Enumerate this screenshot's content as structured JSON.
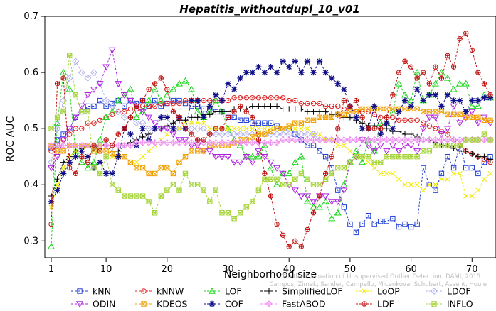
{
  "chart_data": {
    "type": "line",
    "title": "Hepatitis_withoutdupl_10_v01",
    "xlabel": "Neighborhood size",
    "ylabel": "ROC AUC",
    "xlim": [
      1,
      73
    ],
    "ylim": [
      0.27,
      0.7
    ],
    "x_ticks": [
      1,
      10,
      20,
      30,
      40,
      50,
      60,
      70
    ],
    "y_ticks": [
      0.3,
      0.4,
      0.5,
      0.6,
      0.7
    ],
    "grid": false,
    "legend_position": "bottom",
    "credit": "Campos, Zimek, Sander, Campello, Micenkova, Schubert, Assent, Houle: On the Evaluation of Unsupervised Outlier Detection. DAMI, 2015.",
    "x": [
      1,
      2,
      3,
      4,
      5,
      6,
      7,
      8,
      9,
      10,
      11,
      12,
      13,
      14,
      15,
      16,
      17,
      18,
      19,
      20,
      21,
      22,
      23,
      24,
      25,
      26,
      27,
      28,
      29,
      30,
      31,
      32,
      33,
      34,
      35,
      36,
      37,
      38,
      39,
      40,
      41,
      42,
      43,
      44,
      45,
      46,
      47,
      48,
      49,
      50,
      51,
      52,
      53,
      54,
      55,
      56,
      57,
      58,
      59,
      60,
      61,
      62,
      63,
      64,
      65,
      66,
      67,
      68,
      69,
      70,
      71,
      72,
      73
    ],
    "series": [
      {
        "name": "kNN",
        "color": "#1f3fd6",
        "marker": "square",
        "values": [
          0.465,
          0.48,
          0.49,
          0.5,
          0.52,
          0.53,
          0.54,
          0.54,
          0.55,
          0.54,
          0.545,
          0.55,
          0.54,
          0.55,
          0.545,
          0.55,
          0.54,
          0.55,
          0.54,
          0.545,
          0.55,
          0.55,
          0.545,
          0.54,
          0.54,
          0.535,
          0.535,
          0.53,
          0.53,
          0.52,
          0.52,
          0.515,
          0.515,
          0.51,
          0.51,
          0.51,
          0.51,
          0.505,
          0.5,
          0.5,
          0.49,
          0.48,
          0.47,
          0.47,
          0.46,
          0.45,
          0.43,
          0.39,
          0.36,
          0.33,
          0.315,
          0.33,
          0.345,
          0.33,
          0.335,
          0.335,
          0.34,
          0.325,
          0.33,
          0.325,
          0.33,
          0.43,
          0.4,
          0.39,
          0.42,
          0.45,
          0.43,
          0.47,
          0.43,
          0.43,
          0.42,
          0.44,
          0.45
        ]
      },
      {
        "name": "kNNW",
        "color": "#e02020",
        "marker": "circle",
        "values": [
          0.46,
          0.47,
          0.48,
          0.49,
          0.5,
          0.5,
          0.51,
          0.51,
          0.515,
          0.52,
          0.525,
          0.53,
          0.53,
          0.535,
          0.535,
          0.54,
          0.54,
          0.54,
          0.545,
          0.545,
          0.545,
          0.545,
          0.55,
          0.55,
          0.55,
          0.55,
          0.55,
          0.55,
          0.55,
          0.55,
          0.555,
          0.555,
          0.555,
          0.555,
          0.555,
          0.555,
          0.555,
          0.555,
          0.555,
          0.55,
          0.55,
          0.545,
          0.545,
          0.545,
          0.545,
          0.54,
          0.54,
          0.54,
          0.535,
          0.535,
          0.53,
          0.53,
          0.53,
          0.525,
          0.52,
          0.52,
          0.52,
          0.515,
          0.515,
          0.515,
          0.515,
          0.51,
          0.505,
          0.5,
          0.495,
          0.49,
          0.48,
          0.47,
          0.46,
          0.455,
          0.45,
          0.445,
          0.44
        ]
      },
      {
        "name": "LOF",
        "color": "#1bd61b",
        "marker": "triangle",
        "values": [
          0.29,
          0.51,
          0.6,
          0.57,
          0.46,
          0.44,
          0.43,
          0.44,
          0.48,
          0.52,
          0.53,
          0.55,
          0.56,
          0.57,
          0.52,
          0.53,
          0.55,
          0.57,
          0.55,
          0.56,
          0.57,
          0.58,
          0.585,
          0.57,
          0.53,
          0.52,
          0.53,
          0.55,
          0.53,
          0.5,
          0.48,
          0.47,
          0.45,
          0.45,
          0.45,
          0.47,
          0.43,
          0.4,
          0.42,
          0.42,
          0.44,
          0.45,
          0.37,
          0.36,
          0.36,
          0.37,
          0.34,
          0.35,
          0.4,
          0.44,
          0.46,
          0.44,
          0.48,
          0.46,
          0.51,
          0.51,
          0.53,
          0.58,
          0.56,
          0.55,
          0.6,
          0.55,
          0.56,
          0.58,
          0.6,
          0.59,
          0.57,
          0.58,
          0.58,
          0.54,
          0.54,
          0.56,
          0.555
        ]
      },
      {
        "name": "SimplifiedLOF",
        "color": "#000000",
        "marker": "plus",
        "values": [
          0.38,
          0.41,
          0.44,
          0.45,
          0.46,
          0.465,
          0.47,
          0.465,
          0.47,
          0.47,
          0.46,
          0.46,
          0.47,
          0.475,
          0.48,
          0.485,
          0.49,
          0.5,
          0.5,
          0.505,
          0.51,
          0.515,
          0.515,
          0.52,
          0.52,
          0.525,
          0.525,
          0.53,
          0.53,
          0.53,
          0.535,
          0.535,
          0.535,
          0.54,
          0.54,
          0.54,
          0.54,
          0.54,
          0.535,
          0.535,
          0.535,
          0.535,
          0.53,
          0.53,
          0.53,
          0.53,
          0.525,
          0.525,
          0.52,
          0.52,
          0.515,
          0.51,
          0.505,
          0.505,
          0.5,
          0.5,
          0.495,
          0.495,
          0.49,
          0.49,
          0.485,
          0.48,
          0.48,
          0.475,
          0.47,
          0.47,
          0.465,
          0.46,
          0.46,
          0.455,
          0.45,
          0.45,
          0.445
        ]
      },
      {
        "name": "LoOP",
        "color": "#f0e800",
        "marker": "x",
        "values": [
          0.36,
          0.4,
          0.43,
          0.45,
          0.46,
          0.46,
          0.47,
          0.47,
          0.47,
          0.46,
          0.45,
          0.45,
          0.45,
          0.44,
          0.44,
          0.45,
          0.46,
          0.47,
          0.48,
          0.49,
          0.5,
          0.5,
          0.51,
          0.51,
          0.51,
          0.51,
          0.5,
          0.5,
          0.5,
          0.5,
          0.5,
          0.5,
          0.5,
          0.5,
          0.5,
          0.5,
          0.5,
          0.5,
          0.5,
          0.5,
          0.5,
          0.5,
          0.5,
          0.49,
          0.49,
          0.48,
          0.48,
          0.47,
          0.47,
          0.46,
          0.45,
          0.45,
          0.44,
          0.43,
          0.42,
          0.42,
          0.42,
          0.41,
          0.4,
          0.4,
          0.4,
          0.39,
          0.4,
          0.4,
          0.41,
          0.41,
          0.42,
          0.42,
          0.38,
          0.38,
          0.39,
          0.41,
          0.42
        ]
      },
      {
        "name": "LDOF",
        "color": "#b0b0ee",
        "marker": "diamond",
        "values": [
          0.44,
          0.5,
          0.55,
          0.59,
          0.62,
          0.6,
          0.59,
          0.6,
          0.58,
          0.55,
          0.54,
          0.53,
          0.52,
          0.52,
          0.51,
          0.51,
          0.5,
          0.5,
          0.5,
          0.5,
          0.5,
          0.5,
          0.5,
          0.5,
          0.5,
          0.5,
          0.49,
          0.49,
          0.49,
          0.49,
          0.49,
          0.49,
          0.49,
          0.49,
          0.49,
          0.49,
          0.49,
          0.49,
          0.49,
          0.49,
          0.49,
          0.49,
          0.49,
          0.49,
          0.48,
          0.48,
          0.48,
          0.48,
          0.48,
          0.48,
          0.48,
          0.48,
          0.48,
          0.48,
          0.48,
          0.48,
          0.48,
          0.48,
          0.48,
          0.48,
          0.48,
          0.48,
          0.48,
          0.48,
          0.48,
          0.48,
          0.48,
          0.48,
          0.48,
          0.48,
          0.48,
          0.48,
          0.48
        ]
      },
      {
        "name": "ODIN",
        "color": "#b020e0",
        "marker": "triangle-down",
        "values": [
          0.43,
          0.45,
          0.48,
          0.5,
          0.52,
          0.54,
          0.56,
          0.57,
          0.58,
          0.61,
          0.64,
          0.58,
          0.56,
          0.55,
          0.54,
          0.53,
          0.52,
          0.51,
          0.5,
          0.5,
          0.49,
          0.48,
          0.48,
          0.47,
          0.47,
          0.46,
          0.46,
          0.45,
          0.45,
          0.45,
          0.44,
          0.44,
          0.45,
          0.44,
          0.46,
          0.45,
          0.44,
          0.43,
          0.42,
          0.4,
          0.39,
          0.38,
          0.38,
          0.37,
          0.38,
          0.38,
          0.37,
          0.37,
          0.39,
          0.44,
          0.45,
          0.48,
          0.47,
          0.46,
          0.47,
          0.46,
          0.47,
          0.46,
          0.47,
          0.47,
          0.46,
          0.5,
          0.52,
          0.52,
          0.49,
          0.5,
          0.54,
          0.51,
          0.52,
          0.53,
          0.51,
          0.52,
          0.51
        ]
      },
      {
        "name": "KDEOS",
        "color": "#f0a000",
        "marker": "square-x",
        "values": [
          0.47,
          0.46,
          0.46,
          0.47,
          0.47,
          0.47,
          0.47,
          0.46,
          0.46,
          0.46,
          0.455,
          0.45,
          0.45,
          0.44,
          0.43,
          0.43,
          0.42,
          0.42,
          0.43,
          0.43,
          0.42,
          0.44,
          0.45,
          0.46,
          0.46,
          0.46,
          0.47,
          0.47,
          0.47,
          0.47,
          0.475,
          0.48,
          0.48,
          0.485,
          0.49,
          0.49,
          0.495,
          0.5,
          0.5,
          0.505,
          0.51,
          0.51,
          0.515,
          0.515,
          0.52,
          0.52,
          0.52,
          0.525,
          0.525,
          0.53,
          0.53,
          0.535,
          0.535,
          0.535,
          0.535,
          0.535,
          0.535,
          0.535,
          0.535,
          0.535,
          0.535,
          0.53,
          0.53,
          0.53,
          0.53,
          0.525,
          0.525,
          0.525,
          0.52,
          0.52,
          0.52,
          0.515,
          0.515
        ]
      },
      {
        "name": "COF",
        "color": "#10108a",
        "marker": "asterisk",
        "values": [
          0.37,
          0.39,
          0.42,
          0.44,
          0.45,
          0.46,
          0.45,
          0.43,
          0.44,
          0.42,
          0.42,
          0.45,
          0.5,
          0.49,
          0.47,
          0.5,
          0.48,
          0.5,
          0.52,
          0.52,
          0.5,
          0.52,
          0.5,
          0.55,
          0.55,
          0.52,
          0.54,
          0.56,
          0.55,
          0.58,
          0.57,
          0.59,
          0.6,
          0.6,
          0.61,
          0.6,
          0.61,
          0.6,
          0.62,
          0.61,
          0.62,
          0.6,
          0.62,
          0.6,
          0.62,
          0.6,
          0.59,
          0.58,
          0.57,
          0.54,
          0.52,
          0.5,
          0.5,
          0.54,
          0.49,
          0.51,
          0.5,
          0.53,
          0.55,
          0.54,
          0.57,
          0.55,
          0.56,
          0.56,
          0.54,
          0.56,
          0.55,
          0.55,
          0.53,
          0.55,
          0.55,
          0.555,
          0.555
        ]
      },
      {
        "name": "FastABOD",
        "color": "#f090f0",
        "marker": "diamond-plus",
        "values": [
          0.47,
          0.47,
          0.47,
          0.47,
          0.47,
          0.47,
          0.47,
          0.47,
          0.47,
          0.47,
          0.47,
          0.47,
          0.47,
          0.47,
          0.475,
          0.475,
          0.475,
          0.475,
          0.475,
          0.475,
          0.475,
          0.475,
          0.475,
          0.475,
          0.475,
          0.475,
          0.475,
          0.475,
          0.475,
          0.475,
          0.475,
          0.475,
          0.475,
          0.475,
          0.475,
          0.475,
          0.475,
          0.475,
          0.48,
          0.48,
          0.48,
          0.48,
          0.48,
          0.48,
          0.48,
          0.48,
          0.48,
          0.48,
          0.48,
          0.48,
          0.48,
          0.48,
          0.48,
          0.48,
          0.48,
          0.48,
          0.48,
          0.48,
          0.48,
          0.48,
          0.48,
          0.48,
          0.48,
          0.48,
          0.48,
          0.48,
          0.48,
          0.48,
          0.48,
          0.48,
          0.48,
          0.48,
          0.48
        ]
      },
      {
        "name": "LDF",
        "color": "#c01010",
        "marker": "circle-plus",
        "values": [
          0.33,
          0.58,
          0.59,
          0.43,
          0.42,
          0.45,
          0.44,
          0.47,
          0.46,
          0.48,
          0.47,
          0.49,
          0.5,
          0.52,
          0.54,
          0.55,
          0.57,
          0.58,
          0.59,
          0.57,
          0.53,
          0.52,
          0.5,
          0.49,
          0.48,
          0.48,
          0.49,
          0.5,
          0.5,
          0.52,
          0.53,
          0.54,
          0.53,
          0.52,
          0.48,
          0.42,
          0.38,
          0.33,
          0.31,
          0.29,
          0.3,
          0.29,
          0.32,
          0.35,
          0.38,
          0.42,
          0.45,
          0.5,
          0.55,
          0.54,
          0.55,
          0.52,
          0.5,
          0.5,
          0.5,
          0.52,
          0.56,
          0.6,
          0.62,
          0.61,
          0.59,
          0.6,
          0.58,
          0.61,
          0.59,
          0.63,
          0.61,
          0.66,
          0.67,
          0.64,
          0.6,
          0.58,
          0.56
        ]
      },
      {
        "name": "INFLO",
        "color": "#a6d43a",
        "marker": "hourglass",
        "values": [
          0.5,
          0.52,
          0.53,
          0.63,
          0.56,
          0.53,
          0.53,
          0.43,
          0.42,
          0.45,
          0.4,
          0.39,
          0.38,
          0.38,
          0.38,
          0.38,
          0.37,
          0.35,
          0.38,
          0.39,
          0.4,
          0.39,
          0.42,
          0.4,
          0.4,
          0.39,
          0.37,
          0.39,
          0.35,
          0.35,
          0.34,
          0.35,
          0.36,
          0.37,
          0.39,
          0.41,
          0.41,
          0.41,
          0.4,
          0.4,
          0.41,
          0.42,
          0.41,
          0.4,
          0.4,
          0.41,
          0.42,
          0.43,
          0.43,
          0.44,
          0.45,
          0.45,
          0.45,
          0.44,
          0.44,
          0.45,
          0.45,
          0.45,
          0.45,
          0.45,
          0.45,
          0.46,
          0.46,
          0.47,
          0.47,
          0.47,
          0.47,
          0.47,
          0.48,
          0.48,
          0.48,
          0.49,
          0.48
        ]
      }
    ]
  }
}
